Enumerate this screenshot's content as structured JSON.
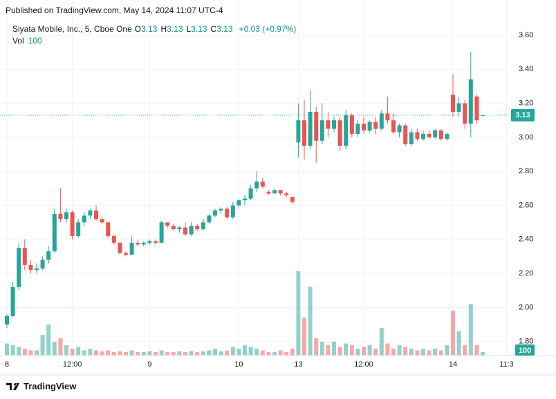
{
  "header": "Published on TradingView.com, May 14, 2024 11:07 UTC-4",
  "footer": "TradingView",
  "chart_data": {
    "type": "candlestick",
    "title": "Siyata Mobile, Inc., 5, Cboe One",
    "legend_letters": [
      "O",
      "H",
      "L",
      "C"
    ],
    "change": "+0.03 (+0.97%)",
    "volume_title": "Vol",
    "up_color": "#26a69a",
    "down_color": "#ef5350",
    "ylim": [
      1.718,
      3.685
    ],
    "yticks": [
      {
        "value": 1.8,
        "label": "1.80"
      },
      {
        "value": 2.0,
        "label": "2.00"
      },
      {
        "value": 2.2,
        "label": "2.20"
      },
      {
        "value": 2.4,
        "label": "2.40"
      },
      {
        "value": 2.6,
        "label": "2.60"
      },
      {
        "value": 2.8,
        "label": "2.80"
      },
      {
        "value": 3.0,
        "label": "3.00"
      },
      {
        "value": 3.2,
        "label": "3.20"
      },
      {
        "value": 3.4,
        "label": "3.40"
      },
      {
        "value": 3.6,
        "label": "3.60"
      }
    ],
    "xticks": [
      {
        "value": 0,
        "label": "8"
      },
      {
        "value": 11,
        "label": "12:00"
      },
      {
        "value": 24,
        "label": "9"
      },
      {
        "value": 39,
        "label": "10"
      },
      {
        "value": 49,
        "label": "13"
      },
      {
        "value": 60,
        "label": "12:00"
      },
      {
        "value": 75,
        "label": "14"
      },
      {
        "value": 84,
        "label": "11:3"
      }
    ],
    "candles": [
      [
        1.9,
        1.96,
        1.88,
        1.95
      ],
      [
        1.95,
        2.15,
        1.94,
        2.12
      ],
      [
        2.12,
        2.38,
        2.1,
        2.35
      ],
      [
        2.35,
        2.4,
        2.22,
        2.25
      ],
      [
        2.25,
        2.28,
        2.2,
        2.22
      ],
      [
        2.22,
        2.26,
        2.2,
        2.23
      ],
      [
        2.23,
        2.3,
        2.22,
        2.28
      ],
      [
        2.28,
        2.36,
        2.26,
        2.33
      ],
      [
        2.33,
        2.58,
        2.32,
        2.55
      ],
      [
        2.55,
        2.7,
        2.5,
        2.52
      ],
      [
        2.52,
        2.58,
        2.5,
        2.56
      ],
      [
        2.56,
        2.57,
        2.4,
        2.42
      ],
      [
        2.42,
        2.52,
        2.41,
        2.5
      ],
      [
        2.5,
        2.56,
        2.48,
        2.54
      ],
      [
        2.54,
        2.58,
        2.52,
        2.57
      ],
      [
        2.57,
        2.6,
        2.51,
        2.52
      ],
      [
        2.52,
        2.53,
        2.49,
        2.5
      ],
      [
        2.5,
        2.5,
        2.41,
        2.42
      ],
      [
        2.42,
        2.43,
        2.37,
        2.38
      ],
      [
        2.38,
        2.39,
        2.31,
        2.32
      ],
      [
        2.32,
        2.33,
        2.3,
        2.31
      ],
      [
        2.31,
        2.42,
        2.31,
        2.38
      ],
      [
        2.38,
        2.4,
        2.36,
        2.37
      ],
      [
        2.37,
        2.39,
        2.36,
        2.38
      ],
      [
        2.38,
        2.4,
        2.37,
        2.39
      ],
      [
        2.39,
        2.4,
        2.37,
        2.38
      ],
      [
        2.38,
        2.51,
        2.38,
        2.5
      ],
      [
        2.5,
        2.5,
        2.47,
        2.48
      ],
      [
        2.48,
        2.49,
        2.45,
        2.46
      ],
      [
        2.46,
        2.48,
        2.44,
        2.47
      ],
      [
        2.47,
        2.5,
        2.42,
        2.43
      ],
      [
        2.43,
        2.5,
        2.42,
        2.48
      ],
      [
        2.48,
        2.49,
        2.45,
        2.46
      ],
      [
        2.46,
        2.52,
        2.45,
        2.5
      ],
      [
        2.5,
        2.55,
        2.49,
        2.54
      ],
      [
        2.54,
        2.58,
        2.53,
        2.57
      ],
      [
        2.57,
        2.59,
        2.55,
        2.58
      ],
      [
        2.58,
        2.59,
        2.52,
        2.53
      ],
      [
        2.53,
        2.62,
        2.52,
        2.6
      ],
      [
        2.6,
        2.64,
        2.58,
        2.63
      ],
      [
        2.63,
        2.66,
        2.6,
        2.64
      ],
      [
        2.64,
        2.72,
        2.63,
        2.7
      ],
      [
        2.7,
        2.8,
        2.68,
        2.74
      ],
      [
        2.74,
        2.76,
        2.7,
        2.71
      ],
      [
        2.68,
        2.69,
        2.66,
        2.67
      ],
      [
        2.67,
        2.7,
        2.67,
        2.69
      ],
      [
        2.69,
        2.69,
        2.66,
        2.67
      ],
      [
        2.67,
        2.68,
        2.65,
        2.66
      ],
      [
        2.65,
        2.65,
        2.61,
        2.62
      ],
      [
        2.97,
        3.2,
        2.88,
        3.1
      ],
      [
        3.1,
        3.22,
        2.87,
        2.95
      ],
      [
        2.95,
        3.28,
        2.93,
        3.15
      ],
      [
        3.15,
        3.18,
        2.85,
        2.98
      ],
      [
        2.98,
        3.2,
        2.96,
        3.1
      ],
      [
        3.1,
        3.15,
        3.0,
        3.05
      ],
      [
        3.05,
        3.12,
        3.03,
        3.1
      ],
      [
        3.1,
        3.12,
        2.92,
        2.95
      ],
      [
        2.95,
        3.16,
        2.93,
        3.13
      ],
      [
        3.13,
        3.14,
        3.0,
        3.02
      ],
      [
        3.02,
        3.1,
        3.0,
        3.08
      ],
      [
        3.08,
        3.12,
        3.02,
        3.04
      ],
      [
        3.04,
        3.1,
        3.03,
        3.09
      ],
      [
        3.09,
        3.12,
        3.02,
        3.05
      ],
      [
        3.05,
        3.16,
        3.04,
        3.14
      ],
      [
        3.14,
        3.24,
        3.08,
        3.1
      ],
      [
        3.1,
        3.14,
        3.02,
        3.03
      ],
      [
        3.03,
        3.08,
        3.0,
        3.07
      ],
      [
        3.07,
        3.08,
        2.95,
        2.96
      ],
      [
        2.96,
        3.05,
        2.95,
        3.03
      ],
      [
        3.03,
        3.05,
        2.98,
        2.99
      ],
      [
        2.99,
        3.04,
        2.98,
        3.02
      ],
      [
        3.02,
        3.04,
        2.99,
        3.0
      ],
      [
        3.0,
        3.05,
        2.99,
        3.04
      ],
      [
        3.04,
        3.05,
        2.98,
        2.99
      ],
      [
        2.99,
        3.03,
        2.98,
        3.02
      ],
      [
        3.25,
        3.37,
        3.12,
        3.15
      ],
      [
        3.15,
        3.24,
        3.12,
        3.2
      ],
      [
        3.2,
        3.22,
        3.05,
        3.08
      ],
      [
        3.08,
        3.5,
        3.0,
        3.34
      ],
      [
        3.24,
        3.25,
        3.08,
        3.1
      ],
      [
        3.13,
        3.13,
        3.13,
        3.13
      ]
    ],
    "volume": [
      350,
      300,
      250,
      200,
      150,
      150,
      600,
      900,
      400,
      500,
      300,
      200,
      250,
      150,
      200,
      150,
      120,
      150,
      100,
      120,
      100,
      150,
      100,
      100,
      120,
      100,
      150,
      100,
      100,
      120,
      100,
      130,
      100,
      120,
      150,
      200,
      120,
      150,
      250,
      200,
      300,
      250,
      200,
      150,
      100,
      100,
      150,
      100,
      200,
      2450,
      1100,
      2000,
      500,
      400,
      300,
      400,
      250,
      350,
      300,
      200,
      250,
      300,
      200,
      800,
      350,
      200,
      300,
      250,
      200,
      150,
      200,
      150,
      200,
      150,
      300,
      1300,
      700,
      300,
      1500,
      300,
      100
    ]
  }
}
